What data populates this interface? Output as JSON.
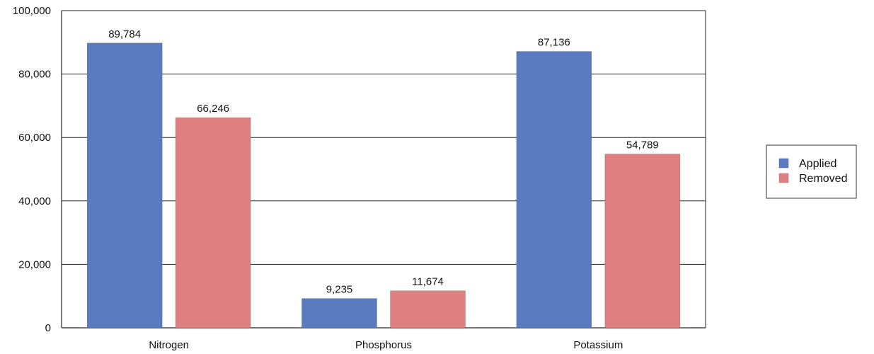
{
  "chart_data": {
    "type": "bar",
    "categories": [
      "Nitrogen",
      "Phosphorus",
      "Potassium"
    ],
    "series": [
      {
        "name": "Applied",
        "values": [
          89784,
          9235,
          87136
        ],
        "labels": [
          "89,784",
          "9,235",
          "87,136"
        ],
        "color": "#5a7bbf"
      },
      {
        "name": "Removed",
        "values": [
          66246,
          11674,
          54789
        ],
        "labels": [
          "66,246",
          "11,674",
          "54,789"
        ],
        "color": "#e07f7f"
      }
    ],
    "ylim": [
      0,
      100000
    ],
    "yticks": [
      0,
      20000,
      40000,
      60000,
      80000,
      100000
    ],
    "ytick_labels": [
      "0",
      "20,000",
      "40,000",
      "60,000",
      "80,000",
      "100,000"
    ],
    "title": "",
    "xlabel": "",
    "ylabel": "",
    "grid": true,
    "legend_position": "right"
  }
}
